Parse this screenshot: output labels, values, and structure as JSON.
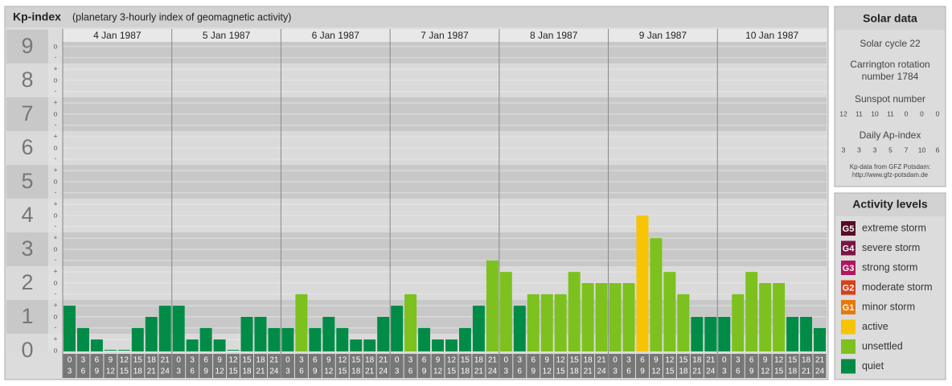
{
  "chart_data": {
    "type": "bar",
    "title": "Kp-index",
    "subtitle": "(planetary 3-hourly index of geomagnetic activity)",
    "days": [
      {
        "label": "4 Jan 1987",
        "values": [
          1.33,
          0.67,
          0.33,
          0,
          0,
          0.67,
          1,
          1.33
        ],
        "colors": [
          "#008c46",
          "#008c46",
          "#008c46",
          "#008c46",
          "#008c46",
          "#008c46",
          "#008c46",
          "#008c46"
        ]
      },
      {
        "label": "5 Jan 1987",
        "values": [
          1.33,
          0.33,
          0.67,
          0.33,
          0,
          1,
          1,
          0.67
        ],
        "colors": [
          "#008c46",
          "#008c46",
          "#008c46",
          "#008c46",
          "#008c46",
          "#008c46",
          "#008c46",
          "#008c46"
        ]
      },
      {
        "label": "6 Jan 1987",
        "values": [
          0.67,
          1.67,
          0.67,
          1,
          0.67,
          0.33,
          0.33,
          1
        ],
        "colors": [
          "#008c46",
          "#7dc11e",
          "#008c46",
          "#008c46",
          "#008c46",
          "#008c46",
          "#008c46",
          "#008c46"
        ]
      },
      {
        "label": "7 Jan 1987",
        "values": [
          1.33,
          1.67,
          0.67,
          0.33,
          0.33,
          0.67,
          1.33,
          2.67
        ],
        "colors": [
          "#008c46",
          "#7dc11e",
          "#008c46",
          "#008c46",
          "#008c46",
          "#008c46",
          "#008c46",
          "#7dc11e"
        ]
      },
      {
        "label": "8 Jan 1987",
        "values": [
          2.33,
          1.33,
          1.67,
          1.67,
          1.67,
          2.33,
          2,
          2
        ],
        "colors": [
          "#7dc11e",
          "#008c46",
          "#7dc11e",
          "#7dc11e",
          "#7dc11e",
          "#7dc11e",
          "#7dc11e",
          "#7dc11e"
        ]
      },
      {
        "label": "9 Jan 1987",
        "values": [
          2,
          2,
          4,
          3.33,
          2.33,
          1.67,
          1,
          1
        ],
        "colors": [
          "#7dc11e",
          "#7dc11e",
          "#f8c300",
          "#7dc11e",
          "#7dc11e",
          "#7dc11e",
          "#008c46",
          "#008c46"
        ]
      },
      {
        "label": "10 Jan 1987",
        "values": [
          1,
          1.67,
          2.33,
          2,
          2,
          1,
          1,
          0.67
        ],
        "colors": [
          "#008c46",
          "#7dc11e",
          "#7dc11e",
          "#7dc11e",
          "#7dc11e",
          "#008c46",
          "#008c46",
          "#008c46"
        ]
      }
    ],
    "categories": [
      [
        "0",
        "3"
      ],
      [
        "3",
        "6"
      ],
      [
        "6",
        "9"
      ],
      [
        "9",
        "12"
      ],
      [
        "12",
        "15"
      ],
      [
        "15",
        "18"
      ],
      [
        "18",
        "21"
      ],
      [
        "21",
        "24"
      ]
    ],
    "ylim": [
      0,
      9.14
    ],
    "yticks": [
      0,
      1,
      2,
      3,
      4,
      5,
      6,
      7,
      8,
      9
    ],
    "minor_yticks": [
      {
        "value": 0,
        "label": "o"
      },
      {
        "value": 0.33,
        "label": "+"
      },
      {
        "value": 0.67,
        "label": "-"
      },
      {
        "value": 1,
        "label": "o"
      },
      {
        "value": 1.33,
        "label": "+"
      },
      {
        "value": 1.67,
        "label": "-"
      },
      {
        "value": 2,
        "label": "o"
      },
      {
        "value": 2.33,
        "label": "+"
      },
      {
        "value": 2.67,
        "label": "-"
      },
      {
        "value": 3,
        "label": "o"
      },
      {
        "value": 3.33,
        "label": "+"
      },
      {
        "value": 3.67,
        "label": "-"
      },
      {
        "value": 4,
        "label": "o"
      },
      {
        "value": 4.33,
        "label": "+"
      },
      {
        "value": 4.67,
        "label": "-"
      },
      {
        "value": 5,
        "label": "o"
      },
      {
        "value": 5.33,
        "label": "+"
      },
      {
        "value": 5.67,
        "label": "-"
      },
      {
        "value": 6,
        "label": "o"
      },
      {
        "value": 6.33,
        "label": "+"
      },
      {
        "value": 6.67,
        "label": "-"
      },
      {
        "value": 7,
        "label": "o"
      },
      {
        "value": 7.33,
        "label": "+"
      },
      {
        "value": 7.67,
        "label": "-"
      },
      {
        "value": 8,
        "label": "o"
      },
      {
        "value": 8.33,
        "label": "+"
      },
      {
        "value": 8.67,
        "label": "-"
      },
      {
        "value": 9,
        "label": "o"
      }
    ]
  },
  "solar_data": {
    "title": "Solar data",
    "cycle": "Solar cycle 22",
    "carrington_1": "Carrington rotation",
    "carrington_2": "number 1784",
    "sunspot_title": "Sunspot number",
    "sunspot": [
      12,
      11,
      10,
      11,
      0,
      0,
      0
    ],
    "ap_title": "Daily Ap-index",
    "ap": [
      3,
      3,
      3,
      5,
      7,
      10,
      6
    ],
    "source_1": "Kp-data from GFZ Potsdam:",
    "source_2": "http://www.gfz-potsdam.de"
  },
  "activity_levels": {
    "title": "Activity levels",
    "items": [
      {
        "badge": "G5",
        "label": "extreme storm",
        "color": "#5a0a2a"
      },
      {
        "badge": "G4",
        "label": "severe storm",
        "color": "#7a1444"
      },
      {
        "badge": "G3",
        "label": "strong storm",
        "color": "#b0165e"
      },
      {
        "badge": "G2",
        "label": "moderate storm",
        "color": "#d8401a"
      },
      {
        "badge": "G1",
        "label": "minor storm",
        "color": "#e8780c"
      },
      {
        "label": "active",
        "color": "#f8c300"
      },
      {
        "label": "unsettled",
        "color": "#7dc11e"
      },
      {
        "label": "quiet",
        "color": "#008c46"
      }
    ]
  }
}
